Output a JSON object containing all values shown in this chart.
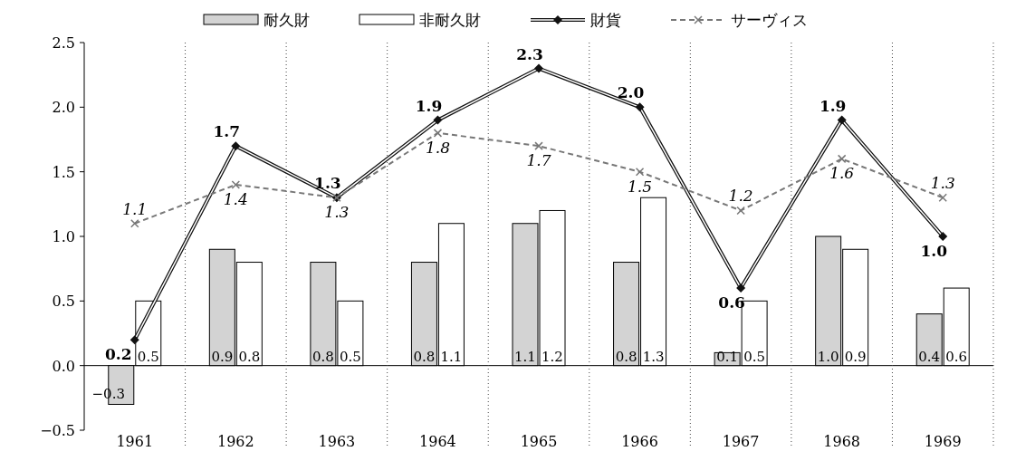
{
  "chart_data": {
    "type": "bar",
    "categories": [
      "1961",
      "1962",
      "1963",
      "1964",
      "1965",
      "1966",
      "1967",
      "1968",
      "1969"
    ],
    "series": [
      {
        "name": "耐久財",
        "color": "#d3d3d3",
        "values": [
          -0.3,
          0.9,
          0.8,
          0.8,
          1.1,
          0.8,
          0.1,
          1.0,
          0.4
        ],
        "value_labels": [
          "−0.3",
          "0.9",
          "0.8",
          "0.8",
          "1.1",
          "0.8",
          "0.1",
          "1.0",
          "0.4"
        ]
      },
      {
        "name": "非耐久財",
        "color": "#ffffff",
        "values": [
          0.5,
          0.8,
          0.5,
          1.1,
          1.2,
          1.3,
          0.5,
          0.9,
          0.6
        ],
        "value_labels": [
          "0.5",
          "0.8",
          "0.5",
          "1.1",
          "1.2",
          "1.3",
          "0.5",
          "0.9",
          "0.6"
        ]
      },
      {
        "name": "財貨",
        "type": "line",
        "color": "#111111",
        "marker": "diamond",
        "line_style": "solid",
        "values": [
          0.2,
          1.7,
          1.3,
          1.9,
          2.3,
          2.0,
          0.6,
          1.9,
          1.0
        ],
        "value_labels": [
          "0.2",
          "1.7",
          "1.3",
          "1.9",
          "2.3",
          "2.0",
          "0.6",
          "1.9",
          "1.0"
        ]
      },
      {
        "name": "サーヴィス",
        "type": "line",
        "color": "#777777",
        "marker": "cross",
        "line_style": "dashed",
        "values": [
          1.1,
          1.4,
          1.3,
          1.8,
          1.7,
          1.5,
          1.2,
          1.6,
          1.3
        ],
        "value_labels": [
          "1.1",
          "1.4",
          "1.3",
          "1.8",
          "1.7",
          "1.5",
          "1.2",
          "1.6",
          "1.3"
        ]
      }
    ],
    "ylim": [
      -0.5,
      2.5
    ],
    "yticks": [
      {
        "value": -0.5,
        "label": "−0.5"
      },
      {
        "value": 0,
        "label": "0.0"
      },
      {
        "value": 0.5,
        "label": "0.5"
      },
      {
        "value": 1,
        "label": "1.0"
      },
      {
        "value": 1.5,
        "label": "1.5"
      },
      {
        "value": 2,
        "label": "2.0"
      },
      {
        "value": 2.5,
        "label": "2.5"
      }
    ],
    "grid": "x",
    "legend": "top"
  }
}
